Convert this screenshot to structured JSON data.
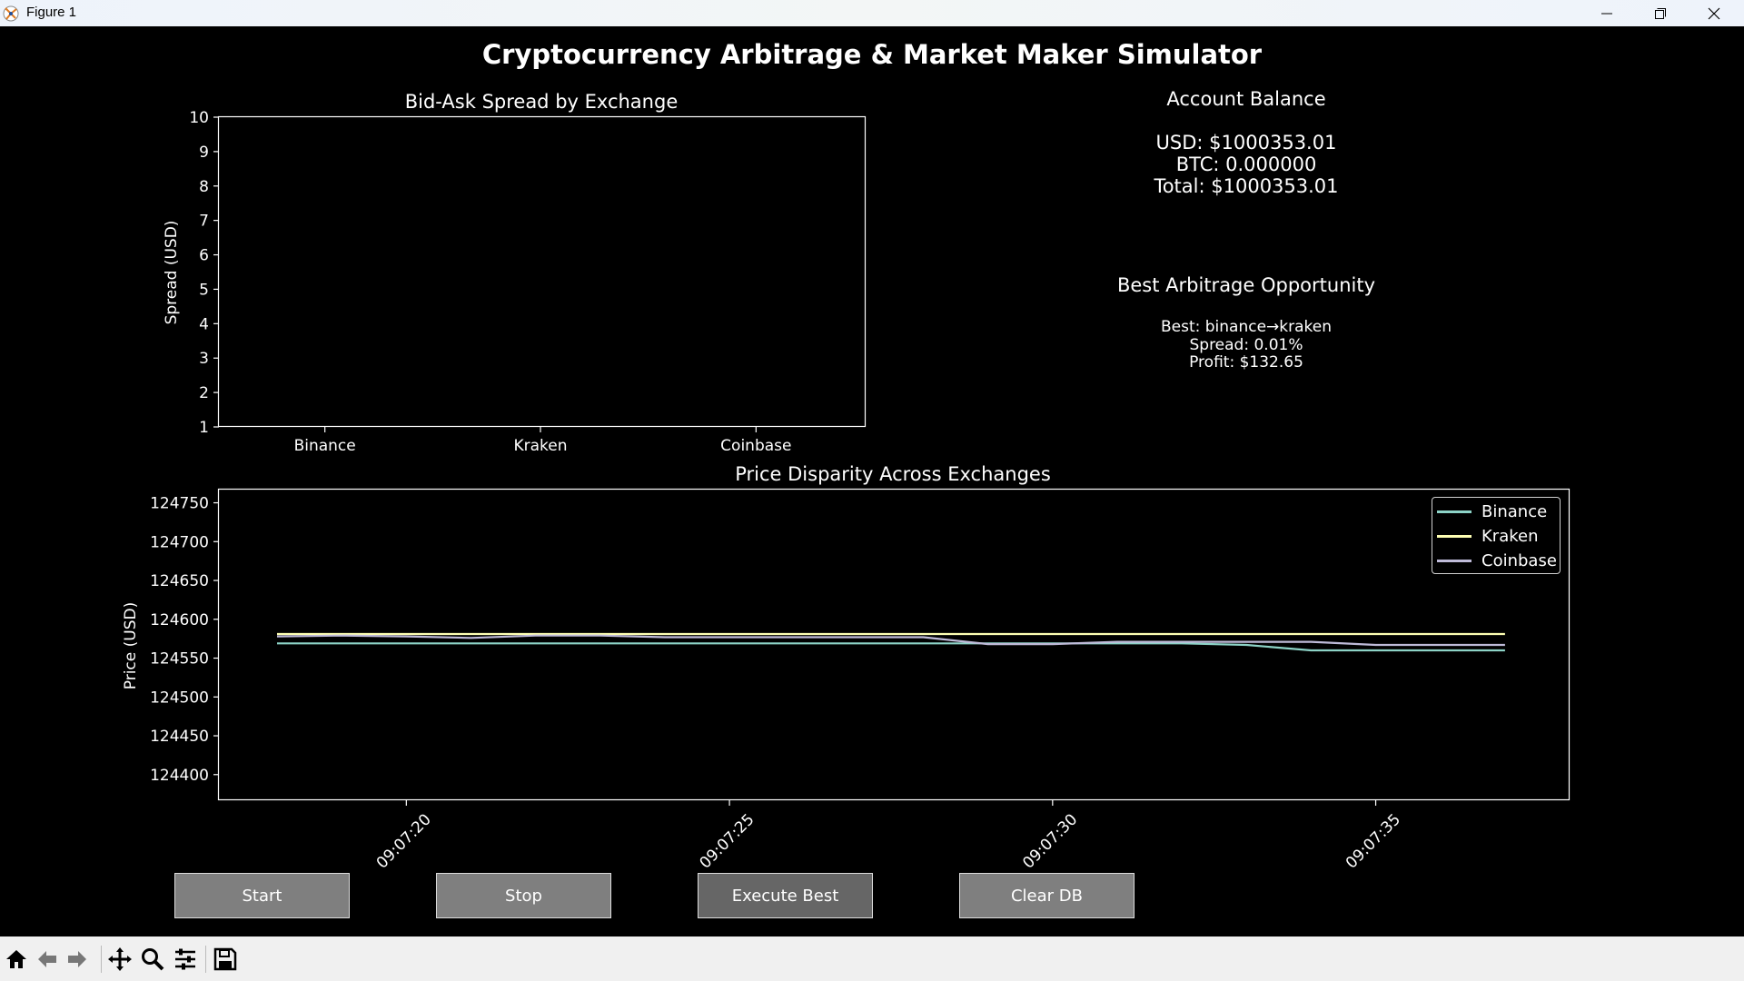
{
  "window": {
    "title": "Figure 1",
    "icons": [
      "app-icon",
      "minimize-icon",
      "maximize-icon",
      "close-icon"
    ]
  },
  "figure": {
    "title": "Cryptocurrency Arbitrage & Market Maker Simulator"
  },
  "spread_panel": {
    "title": "Bid-Ask Spread by Exchange",
    "ylabel": "Spread (USD)"
  },
  "account": {
    "heading": "Account Balance",
    "usd": "USD: $1000353.01",
    "btc": "BTC: 0.000000",
    "total": "Total: $1000353.01"
  },
  "arbitrage": {
    "heading": "Best Arbitrage Opportunity",
    "best": "Best: binance→kraken",
    "spread": "Spread: 0.01%",
    "profit": "Profit: $132.65"
  },
  "price_panel": {
    "title": "Price Disparity Across Exchanges",
    "ylabel": "Price (USD)"
  },
  "buttons": {
    "start": "Start",
    "stop": "Stop",
    "execute_best": "Execute Best",
    "clear_db": "Clear DB"
  },
  "toolbar": {
    "icons": [
      "home-icon",
      "back-icon",
      "forward-icon",
      "pan-icon",
      "zoom-icon",
      "configure-icon",
      "save-icon"
    ]
  },
  "colors": {
    "binance": "#8dd3c7",
    "kraken": "#feffb3",
    "coinbase": "#bfbbd9"
  },
  "chart_data": [
    {
      "type": "bar",
      "title": "Bid-Ask Spread by Exchange",
      "categories": [
        "Binance",
        "Kraken",
        "Coinbase"
      ],
      "values": [
        null,
        null,
        null
      ],
      "ylabel": "Spread (USD)",
      "xlabel": "",
      "ylim": [
        1,
        10
      ],
      "yticks": [
        "1",
        "2",
        "3",
        "4",
        "5",
        "6",
        "7",
        "8",
        "9",
        "10"
      ],
      "grid": false
    },
    {
      "type": "line",
      "title": "Price Disparity Across Exchanges",
      "ylabel": "Price (USD)",
      "xlabel": "",
      "x": [
        "09:07:18",
        "09:07:19",
        "09:07:20",
        "09:07:21",
        "09:07:22",
        "09:07:23",
        "09:07:24",
        "09:07:25",
        "09:07:26",
        "09:07:27",
        "09:07:28",
        "09:07:29",
        "09:07:30",
        "09:07:31",
        "09:07:32",
        "09:07:33",
        "09:07:34",
        "09:07:35",
        "09:07:36",
        "09:07:37"
      ],
      "xticks": [
        "09:07:20",
        "09:07:25",
        "09:07:30",
        "09:07:35"
      ],
      "xlim": [
        "09:07:17.1",
        "09:07:38.0"
      ],
      "ylim": [
        124367,
        124767
      ],
      "yticks": [
        "124400",
        "124450",
        "124500",
        "124550",
        "124600",
        "124650",
        "124700",
        "124750"
      ],
      "legend": "top-right",
      "grid": false,
      "series": [
        {
          "name": "Binance",
          "color": "#8dd3c7",
          "values": [
            124569,
            124569,
            124569,
            124569,
            124569,
            124569,
            124569,
            124569,
            124569,
            124569,
            124569,
            124569,
            124569,
            124569,
            124569,
            124567,
            124560,
            124560,
            124560,
            124560
          ]
        },
        {
          "name": "Kraken",
          "color": "#feffb3",
          "values": [
            124581,
            124581,
            124581,
            124581,
            124581,
            124581,
            124581,
            124581,
            124581,
            124581,
            124581,
            124581,
            124581,
            124581,
            124581,
            124581,
            124581,
            124581,
            124581,
            124581
          ]
        },
        {
          "name": "Coinbase",
          "color": "#bfbbd9",
          "values": [
            124578,
            124579,
            124578,
            124576,
            124579,
            124579,
            124577,
            124577,
            124577,
            124577,
            124577,
            124568,
            124568,
            124571,
            124571,
            124571,
            124571,
            124567,
            124567,
            124567
          ]
        }
      ]
    }
  ]
}
